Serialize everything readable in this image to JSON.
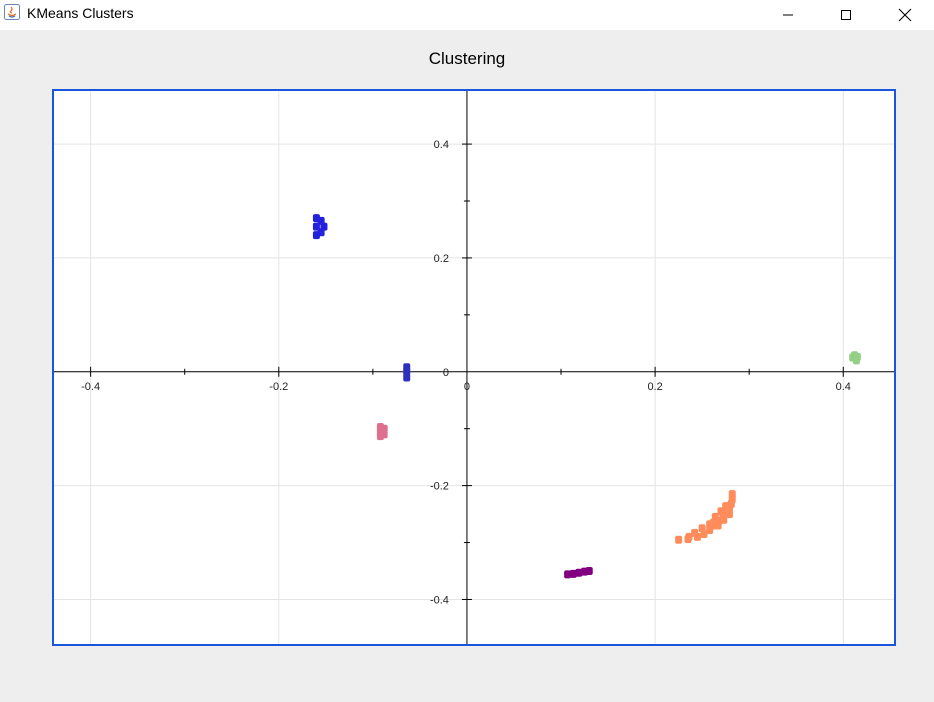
{
  "window": {
    "title": "KMeans Clusters",
    "buttons": {
      "minimize": "minimize",
      "maximize": "maximize",
      "close": "close"
    }
  },
  "colors": {
    "frame": "#1a56db",
    "grid": "#e4e4e4",
    "axis": "#000000"
  },
  "chart_data": {
    "type": "scatter",
    "title": "Clustering",
    "xlabel": "",
    "ylabel": "",
    "xlim": [
      -0.44,
      0.455
    ],
    "ylim": [
      -0.48,
      0.495
    ],
    "xticks": [
      -0.4,
      -0.2,
      0,
      0.2,
      0.4
    ],
    "xtick_labels": [
      "-0.4",
      "-0.2",
      "0",
      "0.2",
      "0.4"
    ],
    "yticks": [
      0.4,
      0.2,
      0,
      -0.2,
      -0.4
    ],
    "ytick_labels": [
      "0.4",
      "0.2",
      "0",
      "-0.2",
      "-0.4"
    ],
    "grid": true,
    "legend": "none",
    "series": [
      {
        "color": "#2222dd",
        "points": [
          [
            -0.16,
            0.27
          ],
          [
            -0.16,
            0.255
          ],
          [
            -0.16,
            0.24
          ],
          [
            -0.155,
            0.265
          ],
          [
            -0.155,
            0.245
          ],
          [
            -0.152,
            0.255
          ]
        ]
      },
      {
        "color": "#2f2fbf",
        "points": [
          [
            -0.064,
            0.008
          ],
          [
            -0.064,
            0.0
          ],
          [
            -0.064,
            -0.01
          ]
        ]
      },
      {
        "color": "#dd6f8f",
        "points": [
          [
            -0.092,
            -0.097
          ],
          [
            -0.092,
            -0.105
          ],
          [
            -0.092,
            -0.113
          ],
          [
            -0.088,
            -0.1
          ],
          [
            -0.088,
            -0.11
          ]
        ]
      },
      {
        "color": "#800080",
        "points": [
          [
            0.107,
            -0.356
          ],
          [
            0.113,
            -0.355
          ],
          [
            0.119,
            -0.353
          ],
          [
            0.125,
            -0.351
          ],
          [
            0.13,
            -0.35
          ]
        ]
      },
      {
        "color": "#ff8c5a",
        "points": [
          [
            0.225,
            -0.295
          ],
          [
            0.235,
            -0.294
          ],
          [
            0.245,
            -0.29
          ],
          [
            0.252,
            -0.285
          ],
          [
            0.258,
            -0.278
          ],
          [
            0.263,
            -0.27
          ],
          [
            0.268,
            -0.262
          ],
          [
            0.272,
            -0.255
          ],
          [
            0.276,
            -0.248
          ],
          [
            0.279,
            -0.24
          ],
          [
            0.281,
            -0.232
          ],
          [
            0.282,
            -0.224
          ],
          [
            0.282,
            -0.215
          ],
          [
            0.275,
            -0.236
          ],
          [
            0.27,
            -0.245
          ],
          [
            0.264,
            -0.255
          ],
          [
            0.258,
            -0.268
          ],
          [
            0.25,
            -0.275
          ],
          [
            0.242,
            -0.283
          ],
          [
            0.236,
            -0.29
          ],
          [
            0.273,
            -0.26
          ],
          [
            0.279,
            -0.25
          ],
          [
            0.267,
            -0.27
          ],
          [
            0.262,
            -0.265
          ]
        ]
      },
      {
        "color": "#93cf85",
        "points": [
          [
            0.41,
            0.025
          ],
          [
            0.412,
            0.029
          ],
          [
            0.415,
            0.026
          ],
          [
            0.414,
            0.02
          ]
        ]
      }
    ]
  }
}
